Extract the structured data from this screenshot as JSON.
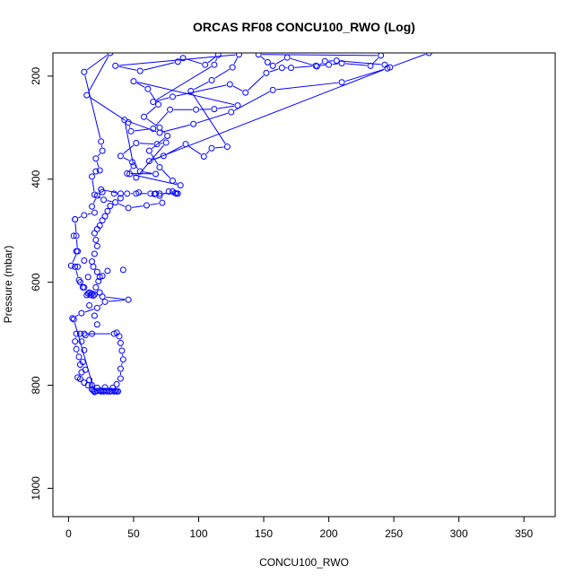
{
  "chart_data": {
    "type": "scatter",
    "title": "ORCAS RF08 CONCU100_RWO (Log)",
    "xlabel": "CONCU100_RWO",
    "ylabel": "Pressure (mbar)",
    "xlim": [
      -12,
      374
    ],
    "ylim": [
      1055,
      155
    ],
    "y_reversed": true,
    "x_ticks": [
      0,
      50,
      100,
      150,
      200,
      250,
      300,
      350
    ],
    "y_ticks": [
      200,
      400,
      600,
      800,
      1000
    ],
    "grid": false,
    "legend": "none",
    "colors": {
      "series": "#0000ff",
      "axes": "#000000"
    },
    "series": [
      {
        "style": "points-and-lines",
        "points": [
          [
            25,
            812
          ],
          [
            27,
            812
          ],
          [
            30,
            812
          ],
          [
            32,
            812
          ],
          [
            35,
            812
          ],
          [
            37,
            812
          ],
          [
            38,
            812
          ],
          [
            36,
            811
          ],
          [
            33,
            811
          ],
          [
            30,
            811
          ],
          [
            28,
            811
          ],
          [
            26,
            811
          ],
          [
            24,
            811
          ],
          [
            22,
            811
          ],
          [
            20,
            812
          ],
          [
            19,
            810
          ],
          [
            22,
            805
          ],
          [
            28,
            804
          ],
          [
            34,
            805
          ],
          [
            37,
            798
          ],
          [
            40,
            787
          ],
          [
            40,
            768
          ],
          [
            42,
            750
          ],
          [
            41,
            733
          ],
          [
            40,
            718
          ],
          [
            39,
            705
          ],
          [
            37,
            698
          ],
          [
            35,
            700
          ],
          [
            12,
            700
          ],
          [
            9,
            700
          ],
          [
            6,
            700
          ],
          [
            5,
            715
          ],
          [
            6,
            730
          ],
          [
            8,
            745
          ],
          [
            9,
            760
          ],
          [
            10,
            775
          ],
          [
            9,
            788
          ],
          [
            7,
            785
          ],
          [
            12,
            795
          ],
          [
            15,
            800
          ],
          [
            18,
            808
          ],
          [
            20,
            813
          ],
          [
            4,
            672
          ],
          [
            3,
            670
          ],
          [
            10,
            660
          ],
          [
            22,
            650
          ],
          [
            28,
            638
          ],
          [
            46,
            634
          ],
          [
            26,
            628
          ],
          [
            24,
            620
          ],
          [
            18,
            622
          ],
          [
            17,
            625
          ],
          [
            20,
            624
          ],
          [
            16,
            620
          ],
          [
            12,
            610
          ],
          [
            8,
            596
          ],
          [
            5,
            570
          ],
          [
            2,
            568
          ],
          [
            7,
            540
          ],
          [
            6,
            510
          ],
          [
            5,
            478
          ],
          [
            12,
            470
          ],
          [
            20,
            465
          ],
          [
            18,
            453
          ],
          [
            22,
            432
          ],
          [
            26,
            425
          ],
          [
            25,
            420
          ],
          [
            40,
            428
          ],
          [
            45,
            428
          ],
          [
            52,
            428
          ],
          [
            63,
            428
          ],
          [
            67,
            428
          ],
          [
            70,
            428
          ],
          [
            84,
            428
          ],
          [
            82,
            427
          ],
          [
            77,
            424
          ],
          [
            70,
            432
          ],
          [
            72,
            446
          ],
          [
            60,
            451
          ],
          [
            46,
            456
          ],
          [
            36,
            445
          ],
          [
            27,
            440
          ],
          [
            20,
            430
          ],
          [
            18,
            395
          ],
          [
            21,
            385
          ],
          [
            24,
            383
          ],
          [
            21,
            360
          ],
          [
            26,
            345
          ],
          [
            25,
            327
          ],
          [
            12,
            192
          ],
          [
            32,
            155
          ],
          [
            14,
            237
          ],
          [
            46,
            290
          ],
          [
            48,
            307
          ],
          [
            65,
            302
          ],
          [
            78,
            265
          ],
          [
            98,
            265
          ],
          [
            112,
            264
          ],
          [
            130,
            257
          ],
          [
            50,
            210
          ],
          [
            61,
            225
          ],
          [
            69,
            255
          ],
          [
            58,
            279
          ],
          [
            70,
            300
          ],
          [
            76,
            316
          ],
          [
            62,
            345
          ],
          [
            70,
            377
          ],
          [
            80,
            403
          ],
          [
            86,
            412
          ],
          [
            47,
            390
          ],
          [
            52,
            397
          ],
          [
            75,
            329
          ],
          [
            68,
            332
          ],
          [
            52,
            330
          ],
          [
            40,
            355
          ],
          [
            49,
            367
          ],
          [
            55,
            385
          ],
          [
            67,
            390
          ],
          [
            45,
            389
          ],
          [
            50,
            374
          ],
          [
            43,
            285
          ],
          [
            70,
            310
          ],
          [
            96,
            293
          ],
          [
            125,
            270
          ],
          [
            157,
            227
          ],
          [
            210,
            212
          ],
          [
            245,
            185
          ],
          [
            62,
            365
          ],
          [
            73,
            355
          ],
          [
            90,
            332
          ],
          [
            104,
            356
          ],
          [
            110,
            340
          ],
          [
            122,
            337
          ],
          [
            94,
            229
          ],
          [
            110,
            208
          ],
          [
            126,
            183
          ],
          [
            131,
            158
          ],
          [
            36,
            180
          ],
          [
            55,
            190
          ],
          [
            84,
            172
          ],
          [
            88,
            165
          ],
          [
            105,
            178
          ],
          [
            115,
            159
          ],
          [
            112,
            178
          ],
          [
            65,
            250
          ],
          [
            80,
            240
          ],
          [
            124,
            216
          ],
          [
            136,
            232
          ],
          [
            152,
            194
          ],
          [
            164,
            184
          ],
          [
            171,
            184
          ],
          [
            190,
            180
          ],
          [
            200,
            178
          ],
          [
            210,
            175
          ],
          [
            232,
            180
          ],
          [
            240,
            160
          ],
          [
            146,
            158
          ],
          [
            153,
            173
          ],
          [
            157,
            180
          ],
          [
            168,
            164
          ],
          [
            191,
            181
          ],
          [
            197,
            171
          ],
          [
            206,
            170
          ],
          [
            243,
            178
          ],
          [
            247,
            183
          ],
          [
            277,
            155
          ]
        ]
      },
      {
        "style": "points-only",
        "points": [
          [
            5,
            478
          ],
          [
            4,
            510
          ],
          [
            6,
            540
          ],
          [
            7,
            570
          ],
          [
            9,
            600
          ],
          [
            11,
            610
          ],
          [
            15,
            622
          ],
          [
            19,
            626
          ],
          [
            21,
            610
          ],
          [
            23,
            598
          ],
          [
            26,
            588
          ],
          [
            30,
            578
          ],
          [
            42,
            576
          ],
          [
            24,
            590
          ],
          [
            22,
            580
          ],
          [
            19,
            570
          ],
          [
            18,
            560
          ],
          [
            20,
            545
          ],
          [
            22,
            530
          ],
          [
            21,
            518
          ],
          [
            20,
            505
          ],
          [
            22,
            497
          ],
          [
            24,
            490
          ],
          [
            26,
            480
          ],
          [
            28,
            472
          ],
          [
            30,
            462
          ],
          [
            32,
            452
          ],
          [
            35,
            428
          ],
          [
            40,
            437
          ],
          [
            54,
            426
          ],
          [
            66,
            429
          ],
          [
            80,
            424
          ],
          [
            83,
            428
          ],
          [
            12,
            558
          ],
          [
            15,
            590
          ],
          [
            14,
            625
          ],
          [
            16,
            645
          ],
          [
            20,
            665
          ],
          [
            22,
            682
          ],
          [
            18,
            700
          ],
          [
            13,
            703
          ],
          [
            10,
            715
          ],
          [
            12,
            732
          ],
          [
            11,
            755
          ],
          [
            13,
            770
          ],
          [
            16,
            790
          ],
          [
            18,
            800
          ]
        ]
      }
    ]
  }
}
